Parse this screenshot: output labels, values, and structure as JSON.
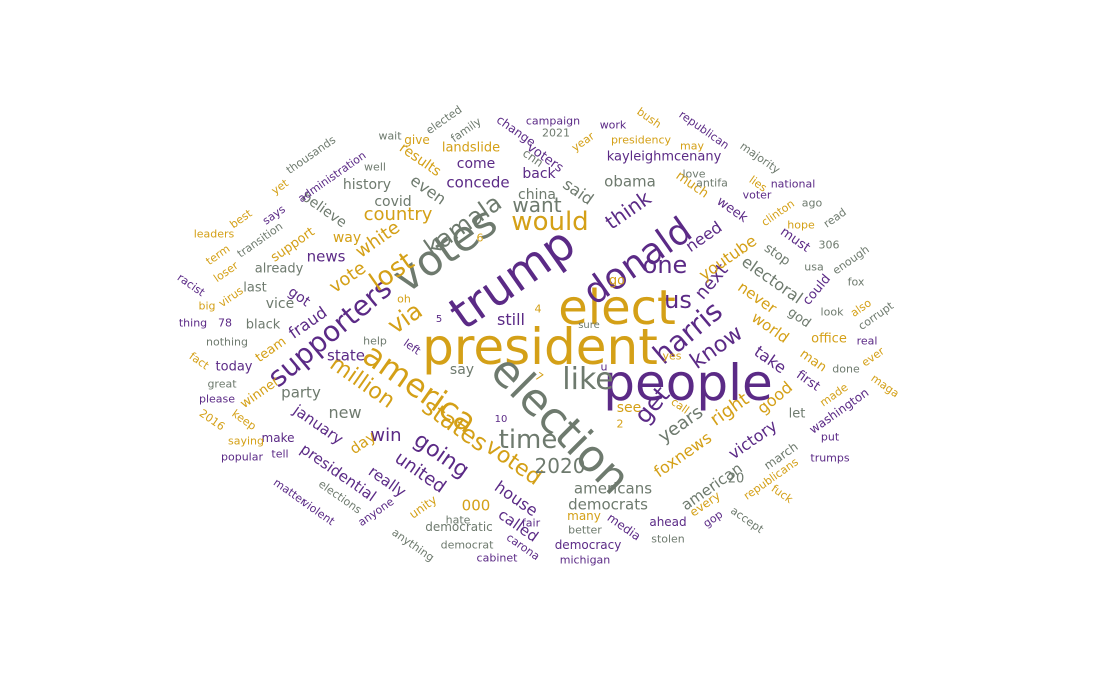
{
  "colors": {
    "purple": "#5b2a86",
    "gold": "#d4a017",
    "gray": "#6e7a6e"
  },
  "words": [
    {
      "t": "people",
      "c": "purple"
    },
    {
      "t": "president",
      "c": "gold"
    },
    {
      "t": "election",
      "c": "gray"
    },
    {
      "t": "elect",
      "c": "gold"
    },
    {
      "t": "trump",
      "c": "purple"
    },
    {
      "t": "votes",
      "c": "gray"
    },
    {
      "t": "donald",
      "c": "purple"
    },
    {
      "t": "america",
      "c": "gold"
    },
    {
      "t": "supporters",
      "c": "purple"
    },
    {
      "t": "kamala",
      "c": "gray"
    },
    {
      "t": "harris",
      "c": "purple"
    },
    {
      "t": "like",
      "c": "gray"
    },
    {
      "t": "lost",
      "c": "gold"
    },
    {
      "t": "via",
      "c": "gold"
    },
    {
      "t": "time",
      "c": "gray"
    },
    {
      "t": "would",
      "c": "gold"
    },
    {
      "t": "million",
      "c": "gold"
    },
    {
      "t": "states",
      "c": "gold"
    },
    {
      "t": "going",
      "c": "purple"
    },
    {
      "t": "get",
      "c": "purple"
    },
    {
      "t": "us",
      "c": "purple"
    },
    {
      "t": "one",
      "c": "purple"
    },
    {
      "t": "want",
      "c": "gray"
    },
    {
      "t": "think",
      "c": "purple"
    },
    {
      "t": "know",
      "c": "purple"
    },
    {
      "t": "voted",
      "c": "gold"
    },
    {
      "t": "2020",
      "c": "gray"
    },
    {
      "t": "united",
      "c": "purple"
    },
    {
      "t": "white",
      "c": "gold"
    },
    {
      "t": "vote",
      "c": "gold"
    },
    {
      "t": "next",
      "c": "purple"
    },
    {
      "t": "years",
      "c": "gray"
    },
    {
      "t": "country",
      "c": "gold"
    },
    {
      "t": "win",
      "c": "purple"
    },
    {
      "t": "new",
      "c": "gray"
    },
    {
      "t": "fraud",
      "c": "purple"
    },
    {
      "t": "still",
      "c": "purple"
    },
    {
      "t": "right",
      "c": "gold"
    },
    {
      "t": "youtube",
      "c": "gold"
    },
    {
      "t": "need",
      "c": "purple"
    },
    {
      "t": "foxnews",
      "c": "gold"
    },
    {
      "t": "house",
      "c": "purple"
    },
    {
      "t": "americans",
      "c": "gray"
    },
    {
      "t": "democrats",
      "c": "gray"
    },
    {
      "t": "said",
      "c": "gray"
    },
    {
      "t": "even",
      "c": "gray"
    },
    {
      "t": "concede",
      "c": "purple"
    },
    {
      "t": "obama",
      "c": "gray"
    },
    {
      "t": "electoral",
      "c": "gray"
    },
    {
      "t": "victory",
      "c": "purple"
    },
    {
      "t": "good",
      "c": "gold"
    },
    {
      "t": "world",
      "c": "gold"
    },
    {
      "t": "never",
      "c": "gold"
    },
    {
      "t": "january",
      "c": "purple"
    },
    {
      "t": "presidential",
      "c": "purple"
    },
    {
      "t": "really",
      "c": "purple"
    },
    {
      "t": "party",
      "c": "gray"
    },
    {
      "t": "state",
      "c": "purple"
    },
    {
      "t": "news",
      "c": "purple"
    },
    {
      "t": "day",
      "c": "gold"
    },
    {
      "t": "000",
      "c": "gold"
    },
    {
      "t": "called",
      "c": "purple"
    },
    {
      "t": "american",
      "c": "gray"
    },
    {
      "t": "take",
      "c": "purple"
    },
    {
      "t": "china",
      "c": "gray"
    },
    {
      "t": "back",
      "c": "purple"
    },
    {
      "t": "voters",
      "c": "purple"
    },
    {
      "t": "come",
      "c": "purple"
    },
    {
      "t": "kayleighmcenany",
      "c": "purple"
    },
    {
      "t": "landslide",
      "c": "gold"
    },
    {
      "t": "results",
      "c": "gold"
    },
    {
      "t": "covid",
      "c": "gray"
    },
    {
      "t": "history",
      "c": "gray"
    },
    {
      "t": "believe",
      "c": "gray"
    },
    {
      "t": "way",
      "c": "gold"
    },
    {
      "t": "support",
      "c": "gold"
    },
    {
      "t": "already",
      "c": "gray"
    },
    {
      "t": "last",
      "c": "gray"
    },
    {
      "t": "got",
      "c": "purple"
    },
    {
      "t": "vice",
      "c": "gray"
    },
    {
      "t": "black",
      "c": "gray"
    },
    {
      "t": "team",
      "c": "gold"
    },
    {
      "t": "today",
      "c": "purple"
    },
    {
      "t": "winner",
      "c": "gold"
    },
    {
      "t": "make",
      "c": "purple"
    },
    {
      "t": "go",
      "c": "gold"
    },
    {
      "t": "say",
      "c": "gray"
    },
    {
      "t": "see",
      "c": "gold"
    },
    {
      "t": "much",
      "c": "gold"
    },
    {
      "t": "week",
      "c": "purple"
    },
    {
      "t": "stop",
      "c": "gray"
    },
    {
      "t": "must",
      "c": "purple"
    },
    {
      "t": "god",
      "c": "gray"
    },
    {
      "t": "could",
      "c": "purple"
    },
    {
      "t": "office",
      "c": "gold"
    },
    {
      "t": "man",
      "c": "gold"
    },
    {
      "t": "first",
      "c": "purple"
    },
    {
      "t": "let",
      "c": "gray"
    },
    {
      "t": "march",
      "c": "gray"
    },
    {
      "t": "20",
      "c": "gray"
    },
    {
      "t": "every",
      "c": "gold"
    },
    {
      "t": "ahead",
      "c": "purple"
    },
    {
      "t": "media",
      "c": "purple"
    },
    {
      "t": "many",
      "c": "gold"
    },
    {
      "t": "democracy",
      "c": "purple"
    },
    {
      "t": "democratic",
      "c": "gray"
    },
    {
      "t": "unity",
      "c": "gold"
    },
    {
      "t": "cnn",
      "c": "gray"
    },
    {
      "t": "change",
      "c": "purple"
    },
    {
      "t": "give",
      "c": "gold"
    },
    {
      "t": "campaign",
      "c": "purple"
    },
    {
      "t": "2021",
      "c": "gray"
    },
    {
      "t": "year",
      "c": "gold"
    },
    {
      "t": "work",
      "c": "purple"
    },
    {
      "t": "presidency",
      "c": "gold"
    },
    {
      "t": "bush",
      "c": "gold"
    },
    {
      "t": "republican",
      "c": "purple"
    },
    {
      "t": "may",
      "c": "gold"
    },
    {
      "t": "majority",
      "c": "gray"
    },
    {
      "t": "love",
      "c": "gray"
    },
    {
      "t": "antifa",
      "c": "gray"
    },
    {
      "t": "lies",
      "c": "gold"
    },
    {
      "t": "national",
      "c": "purple"
    },
    {
      "t": "voter",
      "c": "purple"
    },
    {
      "t": "clinton",
      "c": "gold"
    },
    {
      "t": "ago",
      "c": "gray"
    },
    {
      "t": "hope",
      "c": "gold"
    },
    {
      "t": "read",
      "c": "gray"
    },
    {
      "t": "306",
      "c": "gray"
    },
    {
      "t": "enough",
      "c": "gray"
    },
    {
      "t": "usa",
      "c": "gray"
    },
    {
      "t": "fox",
      "c": "gray"
    },
    {
      "t": "look",
      "c": "gray"
    },
    {
      "t": "also",
      "c": "gold"
    },
    {
      "t": "corrupt",
      "c": "gray"
    },
    {
      "t": "real",
      "c": "purple"
    },
    {
      "t": "done",
      "c": "gray"
    },
    {
      "t": "ever",
      "c": "gold"
    },
    {
      "t": "maga",
      "c": "gold"
    },
    {
      "t": "made",
      "c": "gold"
    },
    {
      "t": "washington",
      "c": "purple"
    },
    {
      "t": "put",
      "c": "purple"
    },
    {
      "t": "trumps",
      "c": "purple"
    },
    {
      "t": "republicans",
      "c": "gold"
    },
    {
      "t": "fuck",
      "c": "gold"
    },
    {
      "t": "gop",
      "c": "purple"
    },
    {
      "t": "accept",
      "c": "gray"
    },
    {
      "t": "stolen",
      "c": "gray"
    },
    {
      "t": "better",
      "c": "gray"
    },
    {
      "t": "michigan",
      "c": "purple"
    },
    {
      "t": "cabinet",
      "c": "purple"
    },
    {
      "t": "carona",
      "c": "purple"
    },
    {
      "t": "democrat",
      "c": "gray"
    },
    {
      "t": "hate",
      "c": "gray"
    },
    {
      "t": "anything",
      "c": "gray"
    },
    {
      "t": "anyone",
      "c": "purple"
    },
    {
      "t": "elections",
      "c": "gray"
    },
    {
      "t": "violent",
      "c": "purple"
    },
    {
      "t": "matter",
      "c": "purple"
    },
    {
      "t": "tell",
      "c": "purple"
    },
    {
      "t": "popular",
      "c": "purple"
    },
    {
      "t": "saying",
      "c": "gold"
    },
    {
      "t": "keep",
      "c": "gold"
    },
    {
      "t": "2016",
      "c": "gold"
    },
    {
      "t": "please",
      "c": "purple"
    },
    {
      "t": "great",
      "c": "gray"
    },
    {
      "t": "fact",
      "c": "gold"
    },
    {
      "t": "nothing",
      "c": "gray"
    },
    {
      "t": "thing",
      "c": "purple"
    },
    {
      "t": "78",
      "c": "purple"
    },
    {
      "t": "big",
      "c": "gold"
    },
    {
      "t": "virus",
      "c": "gold"
    },
    {
      "t": "racist",
      "c": "purple"
    },
    {
      "t": "loser",
      "c": "gold"
    },
    {
      "t": "term",
      "c": "gold"
    },
    {
      "t": "leaders",
      "c": "gold"
    },
    {
      "t": "best",
      "c": "gold"
    },
    {
      "t": "transition",
      "c": "gray"
    },
    {
      "t": "says",
      "c": "purple"
    },
    {
      "t": "yet",
      "c": "gold"
    },
    {
      "t": "administration",
      "c": "purple"
    },
    {
      "t": "thousands",
      "c": "gray"
    },
    {
      "t": "well",
      "c": "gray"
    },
    {
      "t": "wait",
      "c": "gray"
    },
    {
      "t": "elected",
      "c": "gray"
    },
    {
      "t": "family",
      "c": "gray"
    },
    {
      "t": "fair",
      "c": "purple"
    },
    {
      "t": "sure",
      "c": "gray"
    },
    {
      "t": "help",
      "c": "gray"
    },
    {
      "t": "left",
      "c": "purple"
    },
    {
      "t": "oh",
      "c": "gold"
    },
    {
      "t": "yes",
      "c": "gold"
    },
    {
      "t": "call",
      "c": "gold"
    },
    {
      "t": "u",
      "c": "purple"
    },
    {
      "t": "5",
      "c": "purple"
    },
    {
      "t": "4",
      "c": "gold"
    },
    {
      "t": "6",
      "c": "gold"
    },
    {
      "t": "7",
      "c": "gold"
    },
    {
      "t": "2",
      "c": "gold"
    },
    {
      "t": "10",
      "c": "purple"
    }
  ]
}
